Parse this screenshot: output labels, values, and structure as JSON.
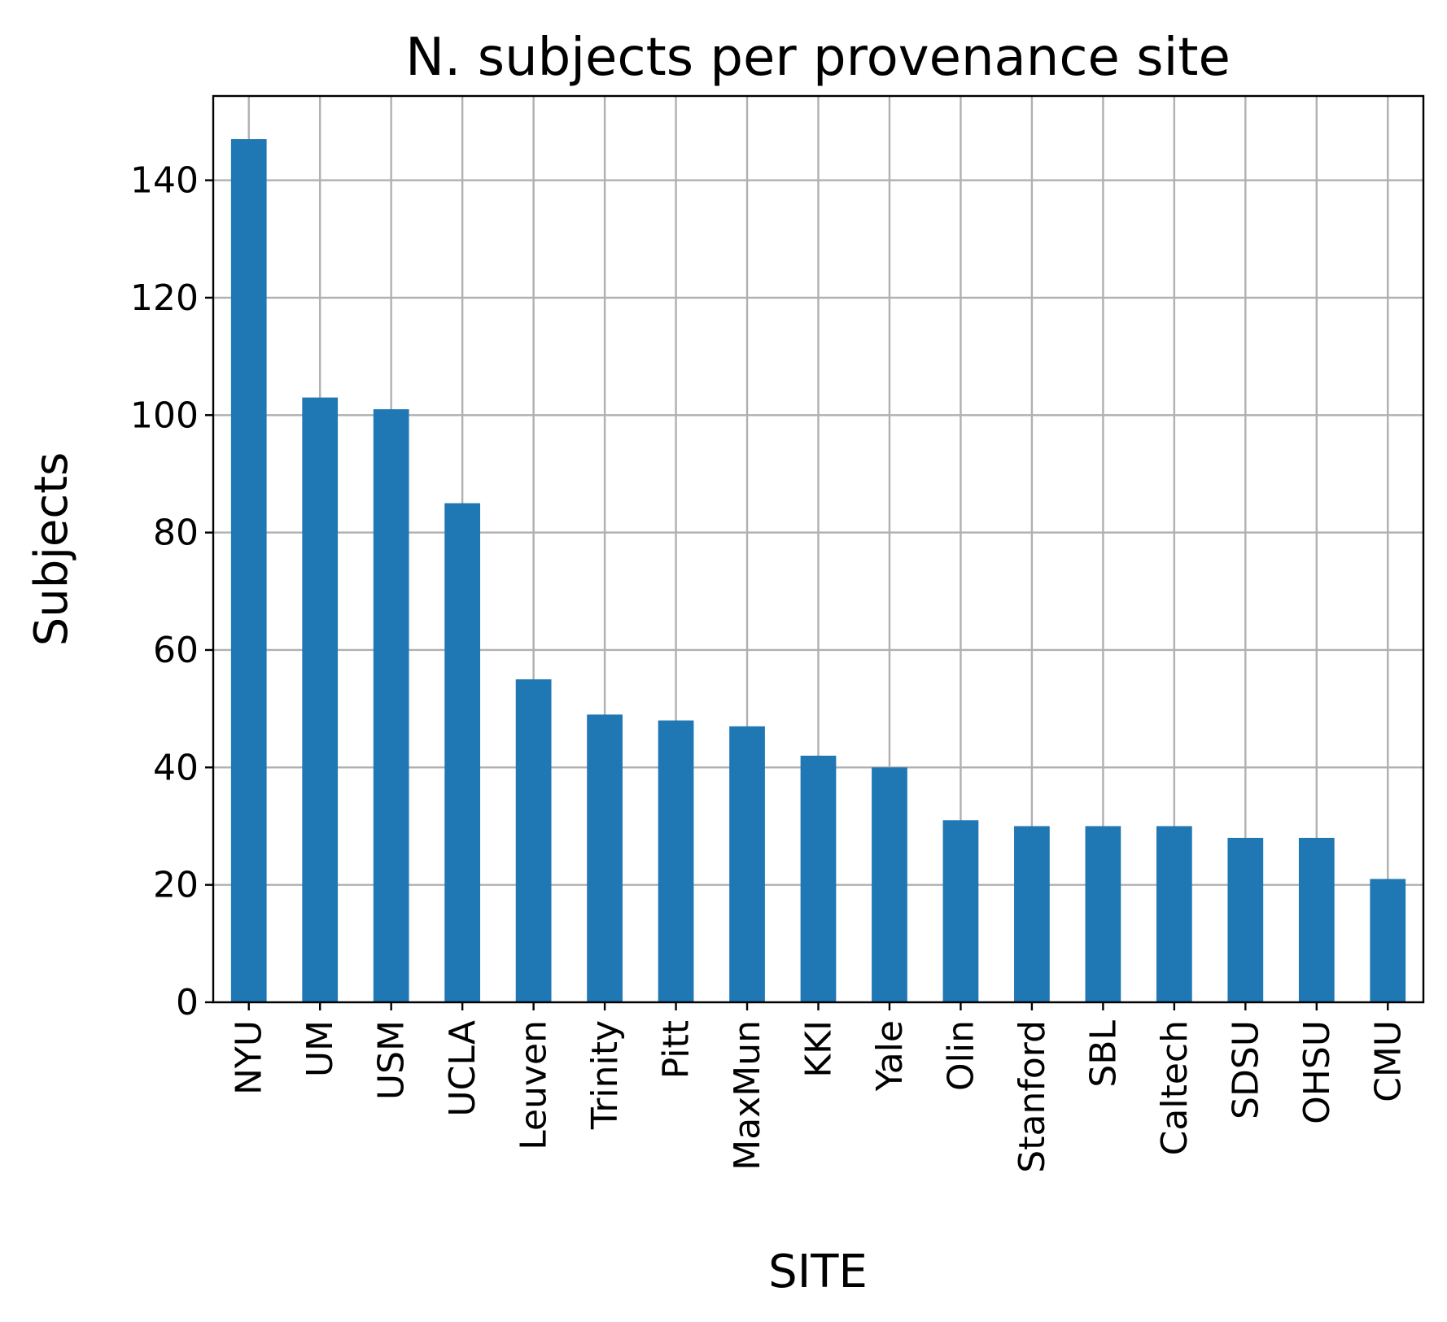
{
  "chart_data": {
    "type": "bar",
    "title": "N. subjects per provenance site",
    "xlabel": "SITE",
    "ylabel": "Subjects",
    "categories": [
      "NYU",
      "UM",
      "USM",
      "UCLA",
      "Leuven",
      "Trinity",
      "Pitt",
      "MaxMun",
      "KKI",
      "Yale",
      "Olin",
      "Stanford",
      "SBL",
      "Caltech",
      "SDSU",
      "OHSU",
      "CMU"
    ],
    "values": [
      147,
      103,
      101,
      85,
      55,
      49,
      48,
      47,
      42,
      40,
      31,
      30,
      30,
      30,
      28,
      28,
      21
    ],
    "ylim": [
      0,
      154.35
    ],
    "yticks": [
      0,
      20,
      40,
      60,
      80,
      100,
      120,
      140
    ],
    "grid": true,
    "legend": "none",
    "colors": {
      "bar": "#1f77b4",
      "grid": "#b0b0b0"
    }
  }
}
